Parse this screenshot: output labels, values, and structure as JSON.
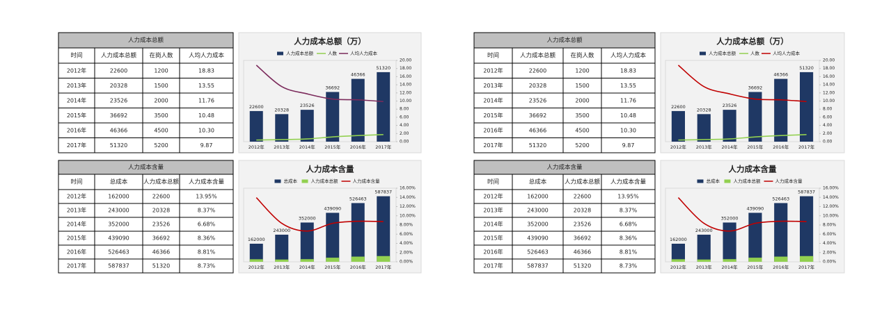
{
  "panels": [
    {
      "cost_table": {
        "title": "人力成本总额",
        "columns": [
          "时间",
          "人力成本总额",
          "在岗人数",
          "人均人力成本"
        ],
        "rows": [
          [
            "2012年",
            "22600",
            "1200",
            "18.83"
          ],
          [
            "2013年",
            "20328",
            "1500",
            "13.55"
          ],
          [
            "2014年",
            "23526",
            "2000",
            "11.76"
          ],
          [
            "2015年",
            "36692",
            "3500",
            "10.48"
          ],
          [
            "2016年",
            "46366",
            "4500",
            "10.30"
          ],
          [
            "2017年",
            "51320",
            "5200",
            "9.87"
          ]
        ]
      },
      "cost_chart": {
        "type": "bar-line",
        "title": "人力成本总额（万）",
        "categories": [
          "2012年",
          "2013年",
          "2014年",
          "2015年",
          "2016年",
          "2017年"
        ],
        "series": [
          {
            "name": "人力成本总额",
            "type": "bar",
            "color": "#1f3864",
            "values": [
              22600,
              20328,
              23526,
              36692,
              46366,
              51320
            ],
            "labels": true
          },
          {
            "name": "人数",
            "type": "line",
            "color": "#92d050",
            "values": [
              1200,
              1500,
              2000,
              3500,
              4500,
              5200
            ]
          },
          {
            "name": "人均人力成本",
            "type": "line",
            "axis": "y2",
            "color": "#7b2a5b",
            "values": [
              18.83,
              13.55,
              11.76,
              10.48,
              10.3,
              9.87
            ]
          }
        ],
        "ylim": [
          0,
          60000
        ],
        "y2lim": [
          0,
          20
        ],
        "y2ticks": [
          {
            "value": 0,
            "label": "0.00"
          },
          {
            "value": 2,
            "label": "2.00"
          },
          {
            "value": 4,
            "label": "4.00"
          },
          {
            "value": 6,
            "label": "6.00"
          },
          {
            "value": 8,
            "label": "8.00"
          },
          {
            "value": 10,
            "label": "10.00"
          },
          {
            "value": 12,
            "label": "12.00"
          },
          {
            "value": 14,
            "label": "14.00"
          },
          {
            "value": 16,
            "label": "16.00"
          },
          {
            "value": 18,
            "label": "18.00"
          },
          {
            "value": 20,
            "label": "20.00"
          }
        ]
      },
      "ratio_table": {
        "title": "人力成本含量",
        "columns": [
          "时间",
          "总成本",
          "人力成本总额",
          "人力成本含量"
        ],
        "rows": [
          [
            "2012年",
            "162000",
            "22600",
            "13.95%"
          ],
          [
            "2013年",
            "243000",
            "20328",
            "8.37%"
          ],
          [
            "2014年",
            "352000",
            "23526",
            "6.68%"
          ],
          [
            "2015年",
            "439090",
            "36692",
            "8.36%"
          ],
          [
            "2016年",
            "526463",
            "46366",
            "8.81%"
          ],
          [
            "2017年",
            "587837",
            "51320",
            "8.73%"
          ]
        ]
      },
      "ratio_chart": {
        "type": "bar-line",
        "title": "人力成本含量",
        "categories": [
          "2012年",
          "2013年",
          "2014年",
          "2015年",
          "2016年",
          "2017年"
        ],
        "series": [
          {
            "name": "总成本",
            "type": "bar",
            "color": "#1f3864",
            "values": [
              162000,
              243000,
              352000,
              439090,
              526463,
              587837
            ],
            "labels": true
          },
          {
            "name": "人力成本总额",
            "type": "bar",
            "color": "#92d050",
            "values": [
              22600,
              20328,
              23526,
              36692,
              46366,
              51320
            ]
          },
          {
            "name": "人力成本含量",
            "type": "line",
            "axis": "y2",
            "color": "#c00000",
            "values": [
              13.95,
              8.37,
              6.68,
              8.36,
              8.81,
              8.73
            ]
          }
        ],
        "ylim": [
          0,
          660000
        ],
        "y2lim": [
          0,
          16
        ],
        "y2ticks": [
          {
            "value": 0,
            "label": "0.00%"
          },
          {
            "value": 2,
            "label": "2.00%"
          },
          {
            "value": 4,
            "label": "4.00%"
          },
          {
            "value": 6,
            "label": "6.00%"
          },
          {
            "value": 8,
            "label": "8.00%"
          },
          {
            "value": 10,
            "label": "10.00%"
          },
          {
            "value": 12,
            "label": "12.00%"
          },
          {
            "value": 14,
            "label": "14.00%"
          },
          {
            "value": 16,
            "label": "16.00%"
          }
        ]
      }
    },
    {
      "cost_table": {
        "title": "人力成本总额",
        "columns": [
          "时间",
          "人力成本总额",
          "在岗人数",
          "人均人力成本"
        ],
        "rows": [
          [
            "2012年",
            "22600",
            "1200",
            "18.83"
          ],
          [
            "2013年",
            "20328",
            "1500",
            "13.55"
          ],
          [
            "2014年",
            "23526",
            "2000",
            "11.76"
          ],
          [
            "2015年",
            "36692",
            "3500",
            "10.48"
          ],
          [
            "2016年",
            "46366",
            "4500",
            "10.30"
          ],
          [
            "2017年",
            "51320",
            "5200",
            "9.87"
          ]
        ]
      },
      "cost_chart": {
        "type": "bar-line",
        "title": "人力成本总额（万）",
        "categories": [
          "2012年",
          "2013年",
          "2014年",
          "2015年",
          "2016年",
          "2017年"
        ],
        "series": [
          {
            "name": "人力成本总额",
            "type": "bar",
            "color": "#1f3864",
            "values": [
              22600,
              20328,
              23526,
              36692,
              46366,
              51320
            ],
            "labels": true
          },
          {
            "name": "人数",
            "type": "line",
            "color": "#92d050",
            "values": [
              1200,
              1500,
              2000,
              3500,
              4500,
              5200
            ]
          },
          {
            "name": "人均人力成本",
            "type": "line",
            "axis": "y2",
            "color": "#c00000",
            "values": [
              18.83,
              13.55,
              11.76,
              10.48,
              10.3,
              9.87
            ]
          }
        ],
        "ylim": [
          0,
          60000
        ],
        "y2lim": [
          0,
          20
        ],
        "y2ticks": [
          {
            "value": 0,
            "label": "0.00"
          },
          {
            "value": 2,
            "label": "2.00"
          },
          {
            "value": 4,
            "label": "4.00"
          },
          {
            "value": 6,
            "label": "6.00"
          },
          {
            "value": 8,
            "label": "8.00"
          },
          {
            "value": 10,
            "label": "10.00"
          },
          {
            "value": 12,
            "label": "12.00"
          },
          {
            "value": 14,
            "label": "14.00"
          },
          {
            "value": 16,
            "label": "16.00"
          },
          {
            "value": 18,
            "label": "18.00"
          },
          {
            "value": 20,
            "label": "20.00"
          }
        ]
      },
      "ratio_table": {
        "title": "人力成本含量",
        "columns": [
          "时间",
          "总成本",
          "人力成本总额",
          "人力成本含量"
        ],
        "rows": [
          [
            "2012年",
            "162000",
            "22600",
            "13.95%"
          ],
          [
            "2013年",
            "243000",
            "20328",
            "8.37%"
          ],
          [
            "2014年",
            "352000",
            "23526",
            "6.68%"
          ],
          [
            "2015年",
            "439090",
            "36692",
            "8.36%"
          ],
          [
            "2016年",
            "526463",
            "46366",
            "8.81%"
          ],
          [
            "2017年",
            "587837",
            "51320",
            "8.73%"
          ]
        ]
      },
      "ratio_chart": {
        "type": "bar-line",
        "title": "人力成本含量",
        "categories": [
          "2012年",
          "2013年",
          "2014年",
          "2015年",
          "2016年",
          "2017年"
        ],
        "series": [
          {
            "name": "总成本",
            "type": "bar",
            "color": "#1f3864",
            "values": [
              162000,
              243000,
              352000,
              439090,
              526463,
              587837
            ],
            "labels": true
          },
          {
            "name": "人力成本总额",
            "type": "bar",
            "color": "#92d050",
            "values": [
              22600,
              20328,
              23526,
              36692,
              46366,
              51320
            ]
          },
          {
            "name": "人力成本含量",
            "type": "line",
            "axis": "y2",
            "color": "#c00000",
            "values": [
              13.95,
              8.37,
              6.68,
              8.36,
              8.81,
              8.73
            ]
          }
        ],
        "ylim": [
          0,
          660000
        ],
        "y2lim": [
          0,
          16
        ],
        "y2ticks": [
          {
            "value": 0,
            "label": "0.00%"
          },
          {
            "value": 2,
            "label": "2.00%"
          },
          {
            "value": 4,
            "label": "4.00%"
          },
          {
            "value": 6,
            "label": "6.00%"
          },
          {
            "value": 8,
            "label": "8.00%"
          },
          {
            "value": 10,
            "label": "10.00%"
          },
          {
            "value": 12,
            "label": "12.00%"
          },
          {
            "value": 14,
            "label": "14.00%"
          },
          {
            "value": 16,
            "label": "16.00%"
          }
        ]
      }
    }
  ]
}
